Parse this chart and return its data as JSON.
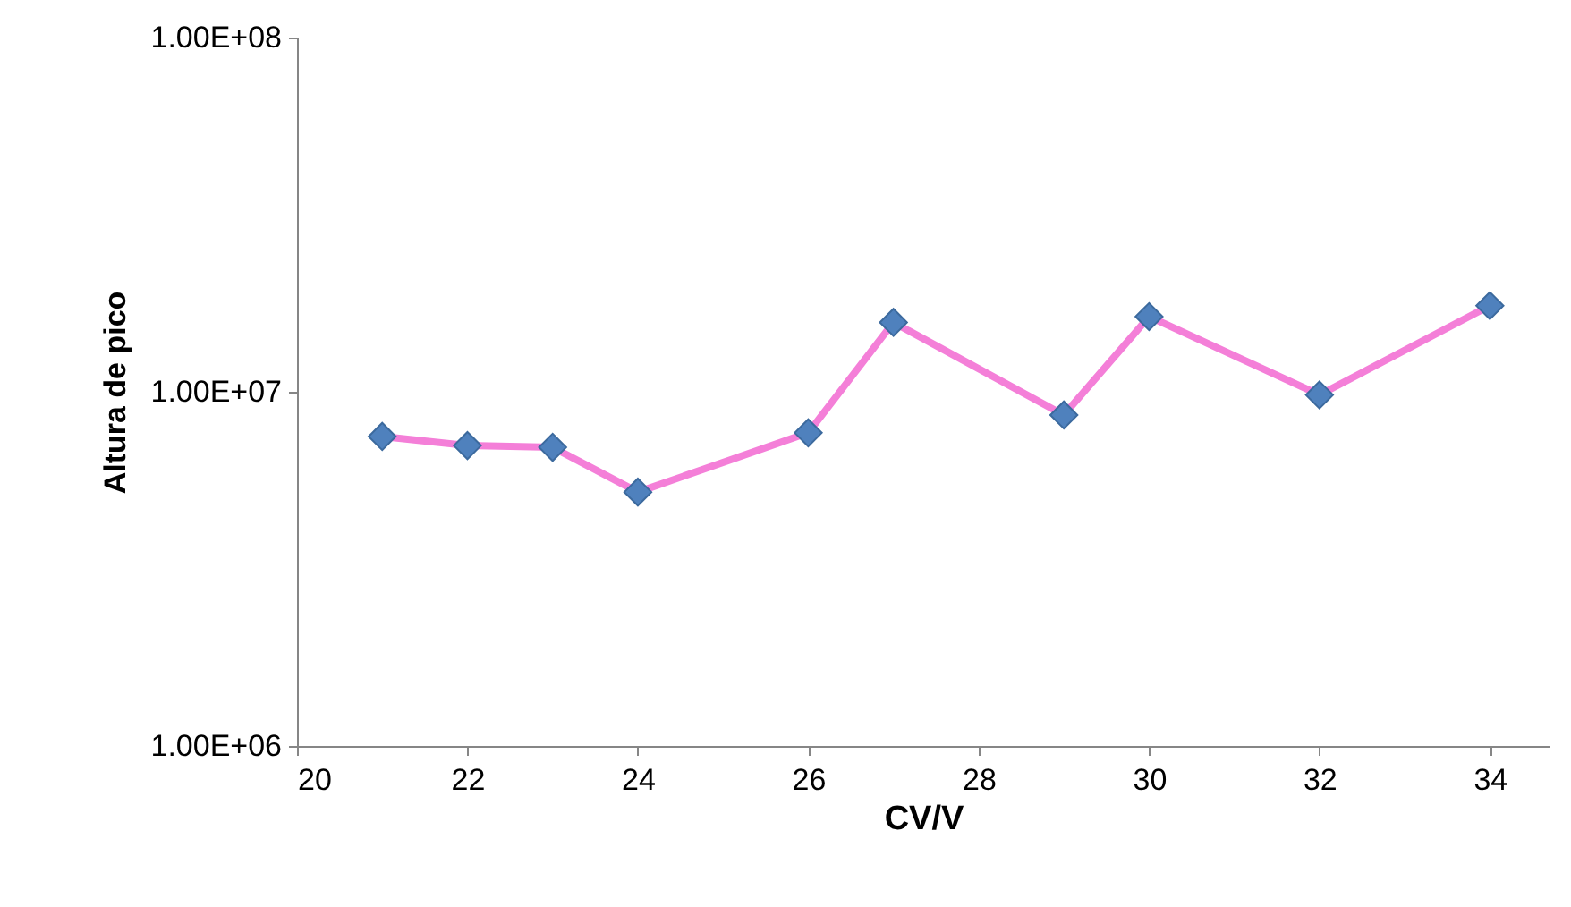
{
  "chart_data": {
    "type": "line",
    "xlabel": "CV/V",
    "ylabel": "Altura de pico",
    "log": "y",
    "grid": false,
    "marker": "diamond",
    "line_style": "solid",
    "x": [
      21,
      22,
      23,
      24,
      26,
      27,
      29,
      30,
      32,
      34
    ],
    "series": [
      {
        "color": "#f47fd8",
        "colors": [
          "#4f81bd",
          "#4f81bd",
          "#4f81bd",
          "#4f81bd",
          "#4f81bd",
          "#4f81bd",
          "#4f81bd",
          "#4f81bd",
          "#4f81bd",
          "#4f81bd"
        ],
        "values": [
          7480000,
          7050000,
          6970000,
          5210000,
          7660000,
          15700000,
          8600000,
          16300000,
          9800000,
          17500000
        ]
      }
    ],
    "xlim": [
      20,
      34.7
    ],
    "xticks": [
      20,
      22,
      24,
      26,
      28,
      30,
      32,
      34
    ],
    "ylim": [
      1000000,
      100000000
    ],
    "yticks": [
      {
        "value": 1000000,
        "label": "1.00E+06"
      },
      {
        "value": 10000000,
        "label": "1.00E+07"
      },
      {
        "value": 100000000,
        "label": "1.00E+08"
      }
    ]
  }
}
